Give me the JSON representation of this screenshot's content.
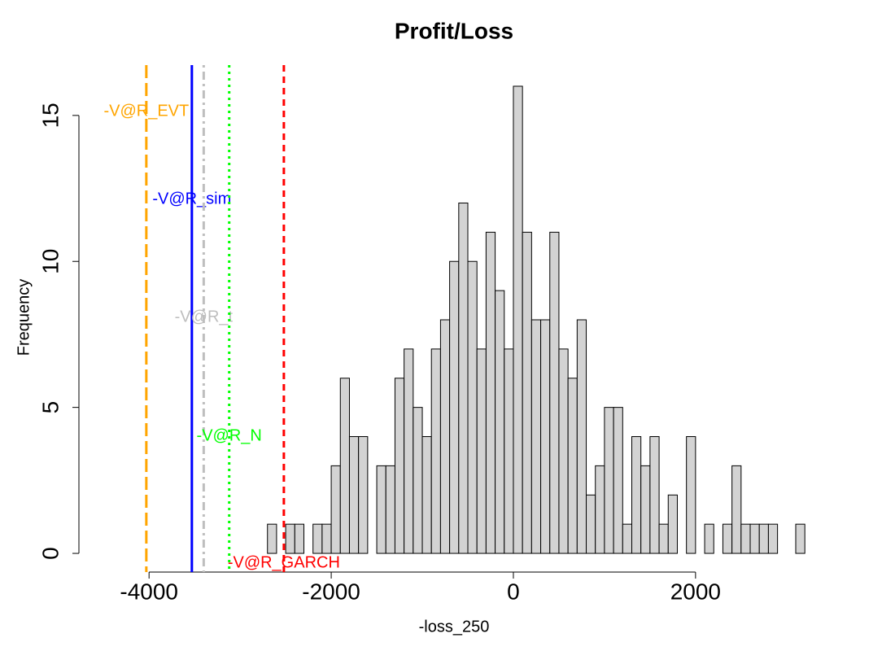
{
  "chart_data": {
    "type": "histogram",
    "title": "Profit/Loss",
    "x_label": "-loss_250",
    "y_label": "Frequency",
    "bins": [
      -2700,
      -2600,
      -2500,
      -2400,
      -2300,
      -2200,
      -2100,
      -2000,
      -1900,
      -1800,
      -1700,
      -1600,
      -1500,
      -1400,
      -1300,
      -1200,
      -1100,
      -1000,
      -900,
      -800,
      -700,
      -600,
      -500,
      -400,
      -300,
      -200,
      -100,
      0,
      100,
      200,
      300,
      400,
      500,
      600,
      700,
      800,
      900,
      1000,
      1100,
      1200,
      1300,
      1400,
      1500,
      1600,
      1700,
      1800,
      1900,
      2000,
      2100,
      2200,
      2300,
      2400,
      2500,
      2600,
      2700,
      2800,
      2900,
      3000,
      3100,
      3200
    ],
    "values": [
      1,
      0,
      1,
      1,
      0,
      1,
      1,
      3,
      6,
      4,
      4,
      0,
      3,
      3,
      6,
      7,
      5,
      4,
      7,
      8,
      10,
      12,
      10,
      7,
      11,
      9,
      7,
      16,
      11,
      8,
      8,
      11,
      7,
      6,
      8,
      2,
      3,
      5,
      5,
      1,
      4,
      3,
      4,
      1,
      2,
      0,
      4,
      0,
      1,
      0,
      1,
      3,
      1,
      1,
      1,
      1,
      0,
      0,
      1
    ],
    "color": "#d3d3d3",
    "xlim": [
      -4770,
      3770
    ],
    "xticks": [
      -4000,
      -2000,
      0,
      2000
    ],
    "ylim": [
      -0.64,
      16.64
    ],
    "yticks": [
      0,
      5,
      10,
      15
    ],
    "reference_lines": [
      {
        "label": "-V@R_EVT",
        "value": -4030,
        "color": "#ffa500",
        "dash": "longdash"
      },
      {
        "label": "-V@R_sim",
        "value": -3530,
        "color": "#0000ff",
        "dash": "solid"
      },
      {
        "label": "-V@R_t",
        "value": -3400,
        "color": "#bebebe",
        "dash": "dotdash"
      },
      {
        "label": "-V@R_N",
        "value": -3120,
        "color": "#00ff00",
        "dash": "dotted"
      },
      {
        "label": "-V@R_GARCH",
        "value": -2520,
        "color": "#ff0000",
        "dash": "dashed"
      }
    ]
  }
}
